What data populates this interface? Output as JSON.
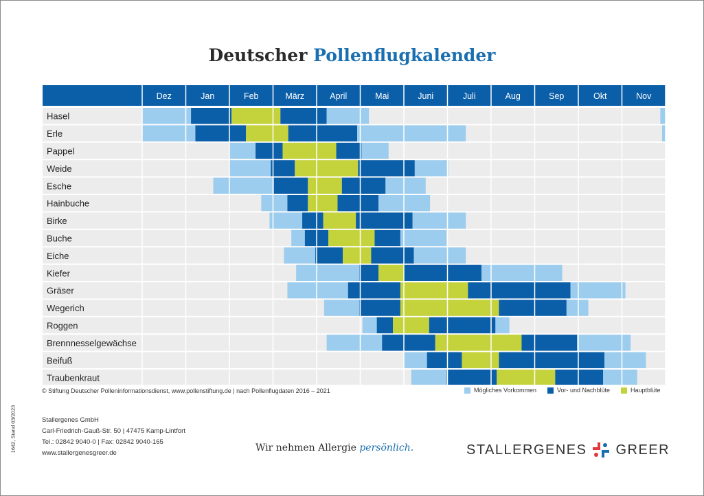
{
  "title": {
    "part1": "Deutscher",
    "part2": "Pollenflugkalender"
  },
  "colors": {
    "header": "#0b5ea8",
    "possible": "#9dcdee",
    "prepost": "#0b5ea8",
    "main": "#c4d23c",
    "background": "#ececec"
  },
  "chart_data": {
    "type": "gantt",
    "x_unit": "month",
    "months": [
      "Dez",
      "Jan",
      "Feb",
      "März",
      "April",
      "Mai",
      "Juni",
      "Juli",
      "Aug",
      "Sep",
      "Okt",
      "Nov"
    ],
    "legend": [
      {
        "key": "possible",
        "label": "Mögliches Vorkommen"
      },
      {
        "key": "prepost",
        "label": "Vor- und Nachblüte"
      },
      {
        "key": "main",
        "label": "Hauptblüte"
      }
    ],
    "rows": [
      {
        "name": "Hasel",
        "segments": [
          {
            "type": "possible",
            "start": 0,
            "end": 1.12
          },
          {
            "type": "prepost",
            "start": 1.12,
            "end": 2.05
          },
          {
            "type": "main",
            "start": 2.05,
            "end": 3.17
          },
          {
            "type": "prepost",
            "start": 3.17,
            "end": 4.23
          },
          {
            "type": "possible",
            "start": 4.23,
            "end": 5.2
          },
          {
            "type": "possible",
            "start": 11.88,
            "end": 12
          }
        ]
      },
      {
        "name": "Erle",
        "segments": [
          {
            "type": "possible",
            "start": 0,
            "end": 1.22
          },
          {
            "type": "prepost",
            "start": 1.22,
            "end": 2.38
          },
          {
            "type": "main",
            "start": 2.38,
            "end": 3.35
          },
          {
            "type": "prepost",
            "start": 3.35,
            "end": 4.93
          },
          {
            "type": "possible",
            "start": 4.93,
            "end": 7.42
          },
          {
            "type": "possible",
            "start": 11.92,
            "end": 12
          }
        ]
      },
      {
        "name": "Pappel",
        "segments": [
          {
            "type": "possible",
            "start": 2,
            "end": 2.6
          },
          {
            "type": "prepost",
            "start": 2.6,
            "end": 3.22
          },
          {
            "type": "main",
            "start": 3.22,
            "end": 4.45
          },
          {
            "type": "prepost",
            "start": 4.45,
            "end": 5.03
          },
          {
            "type": "possible",
            "start": 5.03,
            "end": 5.65
          }
        ]
      },
      {
        "name": "Weide",
        "segments": [
          {
            "type": "possible",
            "start": 2,
            "end": 2.95
          },
          {
            "type": "prepost",
            "start": 2.95,
            "end": 3.5
          },
          {
            "type": "main",
            "start": 3.5,
            "end": 4.95
          },
          {
            "type": "prepost",
            "start": 4.95,
            "end": 6.25
          },
          {
            "type": "possible",
            "start": 6.25,
            "end": 7.02
          }
        ]
      },
      {
        "name": "Esche",
        "segments": [
          {
            "type": "possible",
            "start": 1.63,
            "end": 3.02
          },
          {
            "type": "prepost",
            "start": 3.02,
            "end": 3.8
          },
          {
            "type": "main",
            "start": 3.8,
            "end": 4.58
          },
          {
            "type": "prepost",
            "start": 4.58,
            "end": 5.58
          },
          {
            "type": "possible",
            "start": 5.58,
            "end": 6.5
          }
        ]
      },
      {
        "name": "Hainbuche",
        "segments": [
          {
            "type": "possible",
            "start": 2.73,
            "end": 3.33
          },
          {
            "type": "prepost",
            "start": 3.33,
            "end": 3.8
          },
          {
            "type": "main",
            "start": 3.8,
            "end": 4.48
          },
          {
            "type": "prepost",
            "start": 4.48,
            "end": 5.42
          },
          {
            "type": "possible",
            "start": 5.42,
            "end": 6.6
          }
        ]
      },
      {
        "name": "Birke",
        "segments": [
          {
            "type": "possible",
            "start": 2.92,
            "end": 3.67
          },
          {
            "type": "prepost",
            "start": 3.67,
            "end": 4.15
          },
          {
            "type": "main",
            "start": 4.15,
            "end": 4.9
          },
          {
            "type": "prepost",
            "start": 4.9,
            "end": 6.2
          },
          {
            "type": "possible",
            "start": 6.2,
            "end": 7.42
          }
        ]
      },
      {
        "name": "Buche",
        "segments": [
          {
            "type": "possible",
            "start": 3.42,
            "end": 3.73
          },
          {
            "type": "prepost",
            "start": 3.73,
            "end": 4.27
          },
          {
            "type": "main",
            "start": 4.27,
            "end": 5.33
          },
          {
            "type": "prepost",
            "start": 5.33,
            "end": 5.92
          },
          {
            "type": "possible",
            "start": 5.92,
            "end": 6.98
          }
        ]
      },
      {
        "name": "Eiche",
        "segments": [
          {
            "type": "possible",
            "start": 3.25,
            "end": 3.97
          },
          {
            "type": "prepost",
            "start": 3.97,
            "end": 4.6
          },
          {
            "type": "main",
            "start": 4.6,
            "end": 5.25
          },
          {
            "type": "prepost",
            "start": 5.25,
            "end": 6.23
          },
          {
            "type": "possible",
            "start": 6.23,
            "end": 7.42
          }
        ]
      },
      {
        "name": "Kiefer",
        "segments": [
          {
            "type": "possible",
            "start": 3.53,
            "end": 4.98
          },
          {
            "type": "prepost",
            "start": 4.98,
            "end": 5.42
          },
          {
            "type": "main",
            "start": 5.42,
            "end": 6
          },
          {
            "type": "prepost",
            "start": 6,
            "end": 7.78
          },
          {
            "type": "possible",
            "start": 7.78,
            "end": 9.63
          }
        ]
      },
      {
        "name": "Gräser",
        "segments": [
          {
            "type": "possible",
            "start": 3.33,
            "end": 4.72
          },
          {
            "type": "prepost",
            "start": 4.72,
            "end": 5.92
          },
          {
            "type": "main",
            "start": 5.92,
            "end": 7.47
          },
          {
            "type": "prepost",
            "start": 7.47,
            "end": 9.82
          },
          {
            "type": "possible",
            "start": 9.82,
            "end": 11.08
          }
        ]
      },
      {
        "name": "Wegerich",
        "segments": [
          {
            "type": "possible",
            "start": 4.17,
            "end": 4.98
          },
          {
            "type": "prepost",
            "start": 4.98,
            "end": 5.92
          },
          {
            "type": "main",
            "start": 5.92,
            "end": 8.18
          },
          {
            "type": "prepost",
            "start": 8.18,
            "end": 9.73
          },
          {
            "type": "possible",
            "start": 9.73,
            "end": 10.23
          }
        ]
      },
      {
        "name": "Roggen",
        "segments": [
          {
            "type": "possible",
            "start": 5.05,
            "end": 5.38
          },
          {
            "type": "prepost",
            "start": 5.38,
            "end": 5.75
          },
          {
            "type": "main",
            "start": 5.75,
            "end": 6.58
          },
          {
            "type": "prepost",
            "start": 6.58,
            "end": 8.1
          },
          {
            "type": "possible",
            "start": 8.1,
            "end": 8.42
          }
        ]
      },
      {
        "name": "Brennnesselgewächse",
        "segments": [
          {
            "type": "possible",
            "start": 4.23,
            "end": 5.5
          },
          {
            "type": "prepost",
            "start": 5.5,
            "end": 6.72
          },
          {
            "type": "main",
            "start": 6.72,
            "end": 8.7
          },
          {
            "type": "prepost",
            "start": 8.7,
            "end": 9.97
          },
          {
            "type": "possible",
            "start": 9.97,
            "end": 11.2
          }
        ]
      },
      {
        "name": "Beifuß",
        "segments": [
          {
            "type": "possible",
            "start": 6,
            "end": 6.53
          },
          {
            "type": "prepost",
            "start": 6.53,
            "end": 7.33
          },
          {
            "type": "main",
            "start": 7.33,
            "end": 8.18
          },
          {
            "type": "prepost",
            "start": 8.18,
            "end": 10.6
          },
          {
            "type": "possible",
            "start": 10.6,
            "end": 11.55
          }
        ]
      },
      {
        "name": "Traubenkraut",
        "segments": [
          {
            "type": "possible",
            "start": 6.17,
            "end": 6.98
          },
          {
            "type": "prepost",
            "start": 6.98,
            "end": 8.13
          },
          {
            "type": "main",
            "start": 8.13,
            "end": 9.47
          },
          {
            "type": "prepost",
            "start": 9.47,
            "end": 10.57
          },
          {
            "type": "possible",
            "start": 10.57,
            "end": 11.35
          }
        ]
      }
    ]
  },
  "footnote": "© Stiftung Deutscher Polleninformationsdienst, www.pollenstiftung.de | nach Pollenflugdaten 2016 – 2021",
  "address": {
    "company": "Stallergenes GmbH",
    "street": "Carl-Friedrich-Gauß-Str. 50  |  47475 Kamp-Lintfort",
    "phone": "Tel.: 02842 9040-0  |  Fax: 02842 9040-165",
    "web": "www.stallergenesgreer.de"
  },
  "tagline": {
    "part1": "Wir nehmen Allergie",
    "part2": "persönlich."
  },
  "brand": {
    "left": "STALLERGENES",
    "right": "GREER"
  },
  "sidetext": "1642, Stand 03/2023"
}
